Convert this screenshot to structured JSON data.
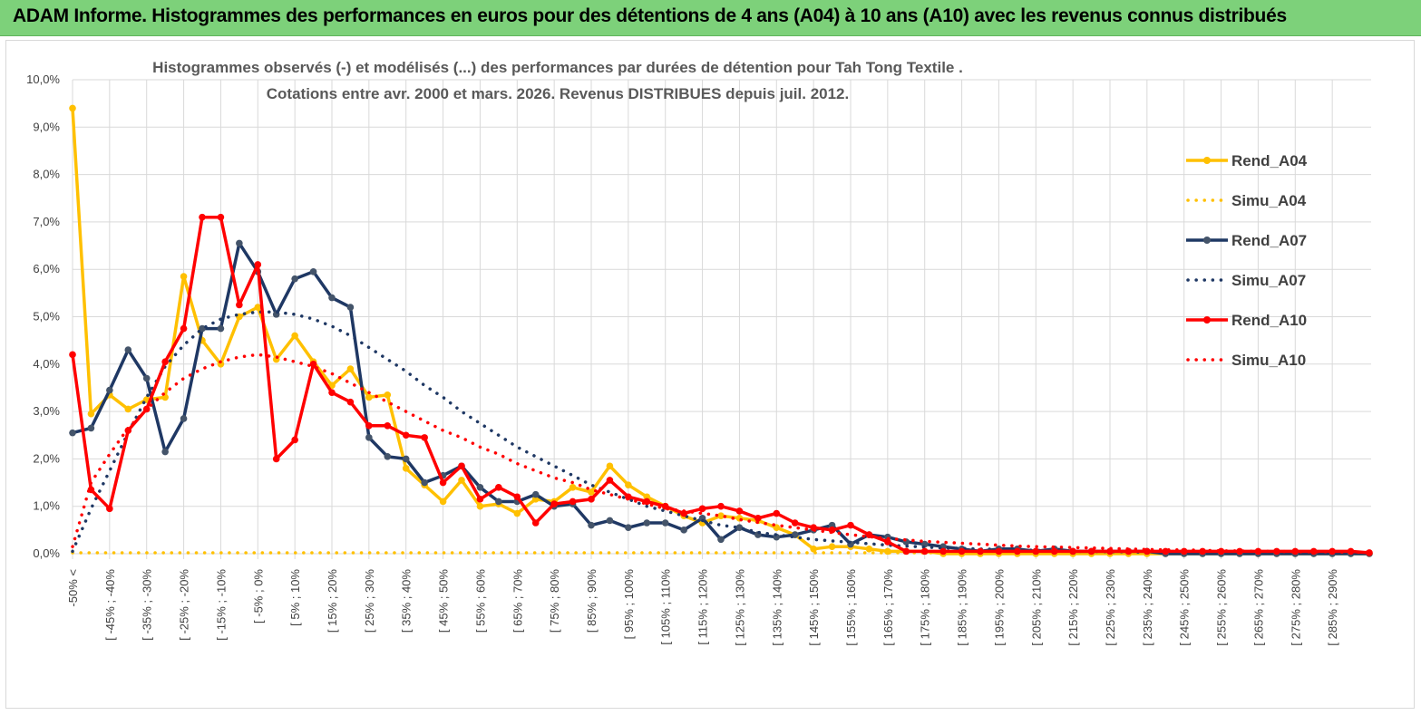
{
  "header": {
    "title": "ADAM Informe. Histogrammes des performances en euros pour des détentions de 4 ans (A04) à 10 ans (A10) avec les revenus connus distribués"
  },
  "chart_data": {
    "type": "line",
    "title": "Histogrammes observés (-) et modélisés (...) des performances par durées de détention pour Tah Tong Textile .",
    "subtitle": "Cotations entre avr. 2000 et mars. 2026. Revenus DISTRIBUES depuis juil. 2012.",
    "xlabel": "",
    "ylabel": "",
    "ylim": [
      0,
      10
    ],
    "y_ticks": [
      "0,0%",
      "1,0%",
      "2,0%",
      "3,0%",
      "4,0%",
      "5,0%",
      "6,0%",
      "7,0%",
      "8,0%",
      "9,0%",
      "10,0%"
    ],
    "x_tick_labels": [
      "-50% <",
      "[ -45% ; -40%",
      "[ -35% ; -30%",
      "[ -25% ; -20%",
      "[ -15% ; -10%",
      "[ -5% ; 0%",
      "[ 5% ; 10%",
      "[ 15% ; 20%",
      "[ 25% ; 30%",
      "[ 35% ; 40%",
      "[ 45% ; 50%",
      "[ 55% ; 60%",
      "[ 65% ; 70%",
      "[ 75% ; 80%",
      "[ 85% ; 90%",
      "[ 95% ; 100%",
      "[ 105% ; 110%",
      "[ 115% ; 120%",
      "[ 125% ; 130%",
      "[ 135% ; 140%",
      "[ 145% ; 150%",
      "[ 155% ; 160%",
      "[ 165% ; 170%",
      "[ 175% ; 180%",
      "[ 185% ; 190%",
      "[ 195% ; 200%",
      "[ 205% ; 210%",
      "[ 215% ; 220%",
      "[ 225% ; 230%",
      "[ 235% ; 240%",
      "[ 245% ; 250%",
      "[ 255% ; 260%",
      "[ 265% ; 270%",
      "[ 275% ; 280%",
      "[ 285% ; 290%"
    ],
    "legend_position": "right",
    "grid": true,
    "series": [
      {
        "name": "Rend_A04",
        "style": "solid-markers",
        "color": "#ffc000",
        "values": [
          9.4,
          2.95,
          3.35,
          3.05,
          3.25,
          3.3,
          5.85,
          4.5,
          4.0,
          5.0,
          5.2,
          4.1,
          4.6,
          4.05,
          3.55,
          3.9,
          3.3,
          3.35,
          1.8,
          1.45,
          1.1,
          1.55,
          1.0,
          1.05,
          0.85,
          1.15,
          1.1,
          1.4,
          1.3,
          1.85,
          1.45,
          1.2,
          1.0,
          0.8,
          0.65,
          0.8,
          0.75,
          0.7,
          0.55,
          0.4,
          0.1,
          0.15,
          0.15,
          0.1,
          0.05,
          0.05,
          0.05,
          0.0,
          0.0,
          0.0,
          0.0,
          0.0,
          0.0,
          0.0,
          0.0,
          0.0,
          0.0,
          0.0,
          0.0,
          0.0,
          0.0,
          0.0,
          0.0,
          0.0,
          0.0,
          0.0,
          0.0,
          0.0,
          0.0,
          0.0,
          0.0
        ]
      },
      {
        "name": "Simu_A04",
        "style": "dotted",
        "color": "#ffc000",
        "values": [
          0.02,
          0.02,
          0.02,
          0.02,
          0.02,
          0.02,
          0.02,
          0.02,
          0.02,
          0.02,
          0.02,
          0.02,
          0.02,
          0.02,
          0.02,
          0.02,
          0.02,
          0.02,
          0.02,
          0.02,
          0.02,
          0.02,
          0.02,
          0.02,
          0.02,
          0.02,
          0.02,
          0.02,
          0.02,
          0.02,
          0.02,
          0.02,
          0.02,
          0.02,
          0.02,
          0.02,
          0.02,
          0.02,
          0.02,
          0.02,
          0.02,
          0.02,
          0.02,
          0.02,
          0.02,
          0.02,
          0.02,
          0.02,
          0.02,
          0.02,
          0.02,
          0.02,
          0.02,
          0.02,
          0.02,
          0.02,
          0.02,
          0.02,
          0.02,
          0.02,
          0.02,
          0.02,
          0.02,
          0.02,
          0.02,
          0.02,
          0.02,
          0.02,
          0.02,
          0.02,
          0.02
        ]
      },
      {
        "name": "Rend_A07",
        "style": "solid-markers",
        "color": "#1f3864",
        "values": [
          2.55,
          2.65,
          3.45,
          4.3,
          3.7,
          2.15,
          2.85,
          4.75,
          4.75,
          6.55,
          5.95,
          5.05,
          5.8,
          5.95,
          5.4,
          5.2,
          2.45,
          2.05,
          2.0,
          1.5,
          1.65,
          1.85,
          1.4,
          1.1,
          1.1,
          1.25,
          1.0,
          1.05,
          0.6,
          0.7,
          0.55,
          0.65,
          0.65,
          0.5,
          0.75,
          0.3,
          0.55,
          0.4,
          0.35,
          0.4,
          0.5,
          0.6,
          0.2,
          0.4,
          0.35,
          0.25,
          0.2,
          0.15,
          0.1,
          0.05,
          0.1,
          0.1,
          0.05,
          0.1,
          0.05,
          0.05,
          0.05,
          0.05,
          0.05,
          0.0,
          0.0,
          0.0,
          0.0,
          0.0,
          0.0,
          0.0,
          0.0,
          0.0,
          0.0,
          0.0,
          0.0
        ]
      },
      {
        "name": "Simu_A07",
        "style": "dotted",
        "color": "#1f3864",
        "values": [
          0.05,
          0.95,
          1.75,
          2.55,
          3.3,
          3.95,
          4.4,
          4.75,
          4.95,
          5.05,
          5.1,
          5.1,
          5.05,
          4.95,
          4.8,
          4.6,
          4.35,
          4.1,
          3.85,
          3.55,
          3.3,
          3.0,
          2.75,
          2.5,
          2.25,
          2.05,
          1.85,
          1.65,
          1.45,
          1.3,
          1.15,
          1.0,
          0.9,
          0.8,
          0.7,
          0.6,
          0.55,
          0.45,
          0.4,
          0.35,
          0.3,
          0.27,
          0.24,
          0.21,
          0.18,
          0.16,
          0.14,
          0.12,
          0.11,
          0.1,
          0.09,
          0.08,
          0.07,
          0.06,
          0.05,
          0.05,
          0.04,
          0.04,
          0.03,
          0.03,
          0.03,
          0.02,
          0.02,
          0.02,
          0.02,
          0.02,
          0.01,
          0.01,
          0.01,
          0.01,
          0.01
        ]
      },
      {
        "name": "Rend_A10",
        "style": "solid-markers",
        "color": "#ff0000",
        "values": [
          4.2,
          1.35,
          0.95,
          2.6,
          3.05,
          4.05,
          4.75,
          7.1,
          7.1,
          5.25,
          6.1,
          2.0,
          2.4,
          4.0,
          3.4,
          3.2,
          2.7,
          2.7,
          2.5,
          2.45,
          1.5,
          1.85,
          1.15,
          1.4,
          1.2,
          0.65,
          1.05,
          1.1,
          1.15,
          1.55,
          1.2,
          1.1,
          1.0,
          0.85,
          0.95,
          1.0,
          0.9,
          0.75,
          0.85,
          0.65,
          0.55,
          0.5,
          0.6,
          0.4,
          0.25,
          0.05,
          0.05,
          0.05,
          0.05,
          0.05,
          0.05,
          0.05,
          0.05,
          0.05,
          0.05,
          0.05,
          0.05,
          0.05,
          0.05,
          0.05,
          0.05,
          0.05,
          0.05,
          0.05,
          0.05,
          0.05,
          0.05,
          0.05,
          0.05,
          0.05,
          0.02
        ]
      },
      {
        "name": "Simu_A10",
        "style": "dotted",
        "color": "#ff0000",
        "values": [
          0.15,
          1.5,
          2.1,
          2.65,
          3.05,
          3.4,
          3.7,
          3.9,
          4.05,
          4.15,
          4.2,
          4.15,
          4.05,
          3.95,
          3.8,
          3.6,
          3.4,
          3.2,
          3.0,
          2.8,
          2.6,
          2.45,
          2.25,
          2.1,
          1.9,
          1.75,
          1.6,
          1.5,
          1.35,
          1.25,
          1.15,
          1.05,
          0.95,
          0.9,
          0.85,
          0.8,
          0.72,
          0.66,
          0.6,
          0.55,
          0.5,
          0.45,
          0.4,
          0.36,
          0.32,
          0.29,
          0.26,
          0.24,
          0.22,
          0.2,
          0.18,
          0.16,
          0.15,
          0.14,
          0.13,
          0.12,
          0.11,
          0.1,
          0.09,
          0.08,
          0.08,
          0.07,
          0.06,
          0.06,
          0.05,
          0.05,
          0.04,
          0.04,
          0.04,
          0.03,
          0.03
        ]
      }
    ]
  }
}
